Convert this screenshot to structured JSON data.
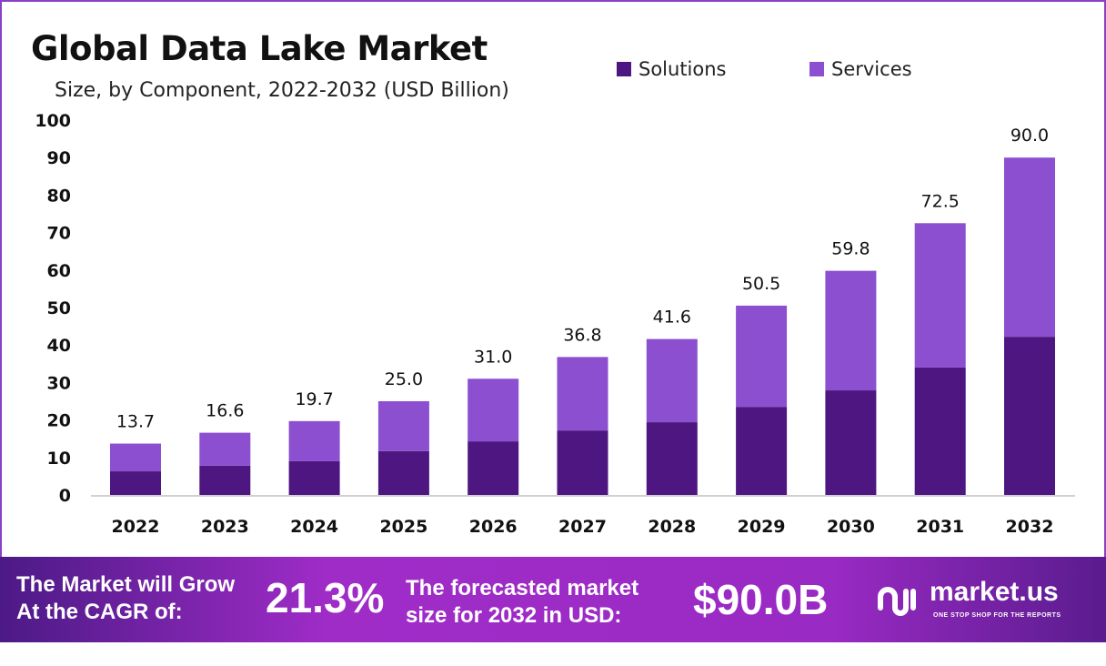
{
  "chart_data": {
    "type": "bar",
    "stacked": true,
    "title": "Global Data Lake Market",
    "subtitle": "Size, by Component, 2022-2032 (USD Billion)",
    "categories": [
      "2022",
      "2023",
      "2024",
      "2025",
      "2026",
      "2027",
      "2028",
      "2029",
      "2030",
      "2031",
      "2032"
    ],
    "series": [
      {
        "name": "Solutions",
        "color": "#4e1680",
        "values": [
          6.3,
          7.8,
          9.0,
          11.7,
          14.3,
          17.2,
          19.4,
          23.5,
          27.9,
          34.0,
          42.2
        ]
      },
      {
        "name": "Services",
        "color": "#8b4fd0",
        "values": [
          7.4,
          8.8,
          10.7,
          13.3,
          16.7,
          19.6,
          22.2,
          27.0,
          31.9,
          38.5,
          47.8
        ]
      }
    ],
    "totals": [
      "13.7",
      "16.6",
      "19.7",
      "25.0",
      "31.0",
      "36.8",
      "41.6",
      "50.5",
      "59.8",
      "72.5",
      "90.0"
    ],
    "yticks": [
      0,
      10,
      20,
      30,
      40,
      50,
      60,
      70,
      80,
      90,
      100
    ],
    "ylim": [
      0,
      100
    ],
    "grid": false,
    "legend_position": "top-right"
  },
  "footer": {
    "cagr_text_1": "The Market will Grow",
    "cagr_text_2": "At the CAGR of:",
    "cagr_value": "21.3%",
    "forecast_text_1": "The forecasted market",
    "forecast_text_2": "size for 2032 in USD:",
    "forecast_value": "$90.0B",
    "brand": "market.us",
    "tagline": "ONE STOP SHOP FOR THE REPORTS"
  }
}
